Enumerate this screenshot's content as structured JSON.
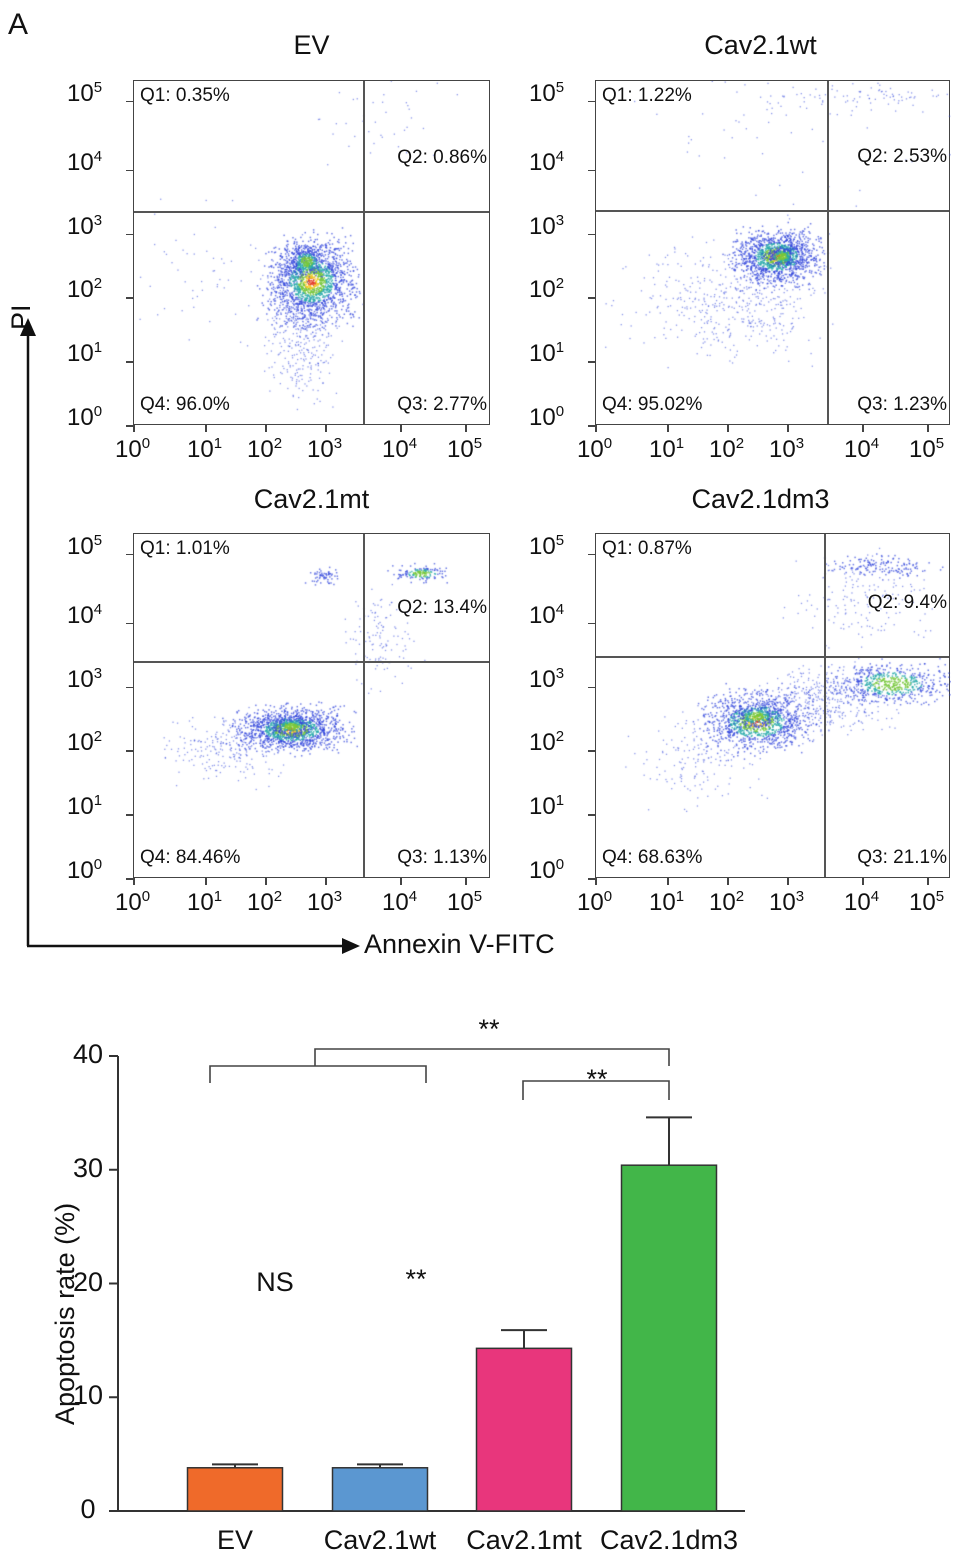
{
  "panel_label": "A",
  "axes": {
    "x_label": "Annexin V-FITC",
    "y_label": "PI"
  },
  "log_ticks": [
    "0",
    "1",
    "2",
    "3",
    "4",
    "5"
  ],
  "flow_plots": [
    {
      "title": "EV",
      "q1": "Q1: 0.35%",
      "q2": "Q2: 0.86%",
      "q3": "Q3: 2.77%",
      "q4": "Q4: 96.0%"
    },
    {
      "title": "Cav2.1wt",
      "q1": "Q1: 1.22%",
      "q2": "Q2: 2.53%",
      "q3": "Q3: 1.23%",
      "q4": "Q4: 95.02%"
    },
    {
      "title": "Cav2.1mt",
      "q1": "Q1: 1.01%",
      "q2": "Q2: 13.4%",
      "q3": "Q3: 1.13%",
      "q4": "Q4: 84.46%"
    },
    {
      "title": "Cav2.1dm3",
      "q1": "Q1: 0.87%",
      "q2": "Q2: 9.4%",
      "q3": "Q3: 21.1%",
      "q4": "Q4: 68.63%"
    }
  ],
  "chart_data": {
    "type": "bar",
    "categories": [
      "EV",
      "Cav2.1wt",
      "Cav2.1mt",
      "Cav2.1dm3"
    ],
    "values": [
      3.8,
      3.8,
      14.3,
      30.4
    ],
    "errors": [
      0.3,
      0.3,
      1.6,
      4.2
    ],
    "colors": [
      "#ef6a2a",
      "#5b97d1",
      "#e8367c",
      "#42b649"
    ],
    "ylabel": "Apoptosis rate (%)",
    "xlabel": "",
    "ylim": [
      0,
      40
    ],
    "yticks": [
      "0",
      "10",
      "20",
      "30",
      "40"
    ],
    "grid": false,
    "annotations": [
      {
        "groups": [
          [
            "EV",
            "Cav2.1wt"
          ],
          [
            "Cav2.1mt"
          ]
        ],
        "label": "**"
      },
      {
        "groups": [
          [
            "EV"
          ],
          [
            "Cav2.1wt"
          ]
        ],
        "label": "NS"
      },
      {
        "groups": [
          [
            "Cav2.1mt"
          ],
          [
            "Cav2.1dm3"
          ]
        ],
        "label": "**"
      },
      {
        "groups": [
          [
            "EV",
            "Cav2.1wt"
          ],
          [
            "Cav2.1dm3"
          ]
        ],
        "label": "**"
      }
    ]
  }
}
